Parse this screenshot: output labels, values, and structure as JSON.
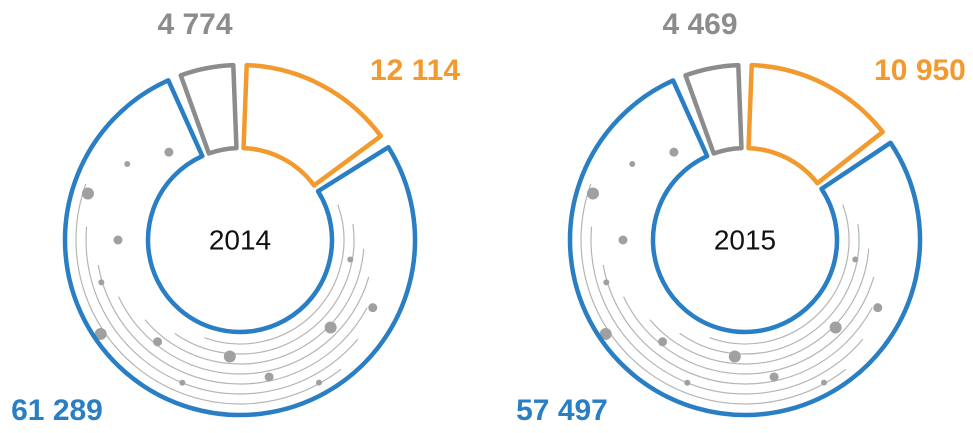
{
  "chart_data": [
    {
      "type": "donut",
      "title": "2014",
      "values": [
        4774,
        12114,
        61289
      ],
      "value_labels": [
        "4 774",
        "12 114",
        "61 289"
      ],
      "colors": [
        "#8c8c8c",
        "#f29a2e",
        "#2a7fc4"
      ]
    },
    {
      "type": "donut",
      "title": "2015",
      "values": [
        4469,
        10950,
        57497
      ],
      "value_labels": [
        "4 469",
        "10 950",
        "57 497"
      ],
      "colors": [
        "#8c8c8c",
        "#f29a2e",
        "#2a7fc4"
      ]
    }
  ]
}
